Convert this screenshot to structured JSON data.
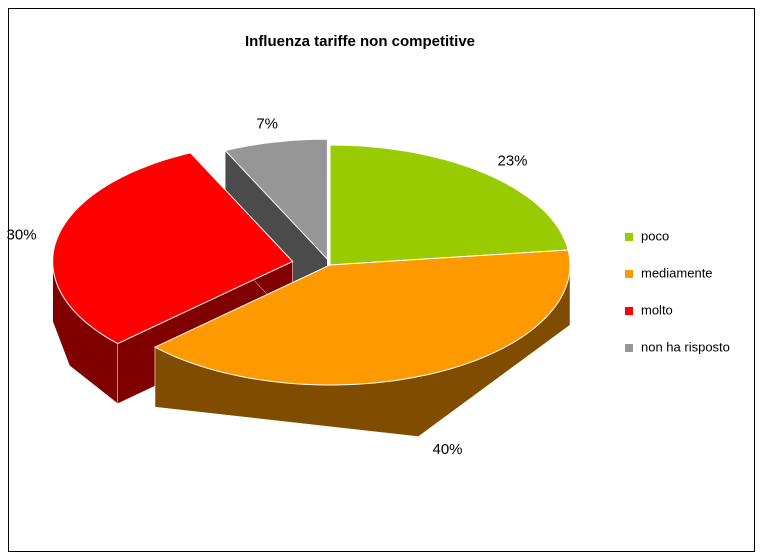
{
  "chart_data": {
    "type": "pie3d",
    "title": "Influenza tariffe non competitive",
    "categories": [
      "poco",
      "mediamente",
      "molto",
      "non ha risposto"
    ],
    "values": [
      23,
      40,
      30,
      7
    ],
    "value_labels": [
      "23%",
      "40%",
      "30%",
      "7%"
    ],
    "colors": [
      "#99cc00",
      "#ff9900",
      "#ff0000",
      "#969696"
    ],
    "legend": "right"
  }
}
